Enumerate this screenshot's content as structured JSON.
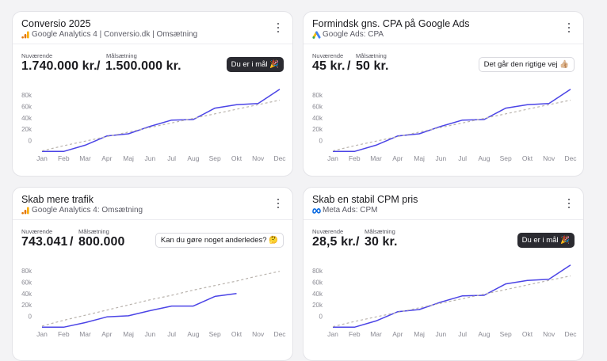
{
  "colors": {
    "actual_line": "#4b44e6",
    "target_line": "#b9b3ad",
    "axis_text": "#8a8a93",
    "dark_pill": "#2b2b31",
    "google_ads_blue": "#4285f4",
    "google_ads_yellow": "#fbbc04",
    "analytics_orange": "#f9ab00",
    "meta_blue": "#0668e1"
  },
  "labels": {
    "current": "Nuværende",
    "target": "Målsætning",
    "separator": "/"
  },
  "cards": [
    {
      "title": "Conversio 2025",
      "subtitle": "Google Analytics 4 | Conversio.dk | Omsætning",
      "source_icon": "google-analytics-icon",
      "current_value": "1.740.000 kr.",
      "target_value": "1.500.000 kr.",
      "badge": "Du er i mål 🎉",
      "badge_style": "dark",
      "chart_data": {
        "type": "line",
        "categories": [
          "Jan",
          "Feb",
          "Mar",
          "Apr",
          "Maj",
          "Jun",
          "Jul",
          "Aug",
          "Sep",
          "Okt",
          "Nov",
          "Dec"
        ],
        "y_ticks": [
          "80k",
          "60k",
          "40k",
          "20k",
          "0"
        ],
        "ylim": [
          -20000,
          80000
        ],
        "series": [
          {
            "role": "actual",
            "values": [
              -19000,
              -19000,
              -8000,
              8000,
              12000,
              25000,
              36000,
              37000,
              57000,
              63000,
              65000,
              90000
            ]
          },
          {
            "role": "target",
            "values": [
              -18000,
              -9000,
              -1000,
              7000,
              15000,
              23000,
              31000,
              39000,
              47000,
              55000,
              63000,
              71000
            ]
          }
        ]
      }
    },
    {
      "title": "Formindsk gns. CPA på Google Ads",
      "subtitle": "Google Ads: CPA",
      "source_icon": "google-ads-icon",
      "current_value": "45 kr.",
      "target_value": "50 kr.",
      "badge": "Det går den rigtige vej 👍🏼",
      "badge_style": "light",
      "chart_data": {
        "type": "line",
        "categories": [
          "Jan",
          "Feb",
          "Mar",
          "Apr",
          "Maj",
          "Jun",
          "Jul",
          "Aug",
          "Sep",
          "Okt",
          "Nov",
          "Dec"
        ],
        "y_ticks": [
          "80k",
          "60k",
          "40k",
          "20k",
          "0"
        ],
        "ylim": [
          -20000,
          80000
        ],
        "series": [
          {
            "role": "actual",
            "values": [
              -19000,
              -19000,
              -8000,
              8000,
              12000,
              25000,
              36000,
              37000,
              57000,
              63000,
              65000,
              90000
            ]
          },
          {
            "role": "target",
            "values": [
              -18000,
              -9000,
              -1000,
              7000,
              15000,
              23000,
              31000,
              39000,
              47000,
              55000,
              63000,
              71000
            ]
          }
        ]
      }
    },
    {
      "title": "Skab mere trafik",
      "subtitle": "Google Analytics 4: Omsætning",
      "source_icon": "google-analytics-icon",
      "current_value": "743.041",
      "target_value": "800.000",
      "badge": "Kan du gøre noget anderledes? 🤔",
      "badge_style": "light",
      "chart_data": {
        "type": "line",
        "categories": [
          "Jan",
          "Feb",
          "Mar",
          "Apr",
          "Maj",
          "Jun",
          "Jul",
          "Aug",
          "Sep",
          "Okt",
          "Nov",
          "Dec"
        ],
        "y_ticks": [
          "80k",
          "60k",
          "40k",
          "20k",
          "0"
        ],
        "ylim": [
          -20000,
          80000
        ],
        "series": [
          {
            "role": "actual",
            "values": [
              -19000,
              -19000,
              -11000,
              -1000,
              1000,
              10000,
              18000,
              18000,
              35000,
              40000,
              null,
              null
            ]
          },
          {
            "role": "target",
            "values": [
              -17000,
              -7000,
              2000,
              11000,
              20000,
              29000,
              37000,
              46000,
              54000,
              62000,
              71000,
              79000
            ]
          }
        ]
      }
    },
    {
      "title": "Skab en stabil CPM pris",
      "subtitle": "Meta Ads: CPM",
      "source_icon": "meta-icon",
      "current_value": "28,5 kr.",
      "target_value": "30 kr.",
      "badge": "Du er i mål 🎉",
      "badge_style": "dark",
      "chart_data": {
        "type": "line",
        "categories": [
          "Jan",
          "Feb",
          "Mar",
          "Apr",
          "Maj",
          "Jun",
          "Jul",
          "Aug",
          "Sep",
          "Okt",
          "Nov",
          "Dec"
        ],
        "y_ticks": [
          "80k",
          "60k",
          "40k",
          "20k",
          "0"
        ],
        "ylim": [
          -20000,
          80000
        ],
        "series": [
          {
            "role": "actual",
            "values": [
              -19000,
              -19000,
              -8000,
              8000,
              12000,
              25000,
              36000,
              37000,
              57000,
              63000,
              65000,
              90000
            ]
          },
          {
            "role": "target",
            "values": [
              -18000,
              -9000,
              -1000,
              7000,
              15000,
              23000,
              31000,
              39000,
              47000,
              55000,
              63000,
              71000
            ]
          }
        ]
      }
    }
  ]
}
